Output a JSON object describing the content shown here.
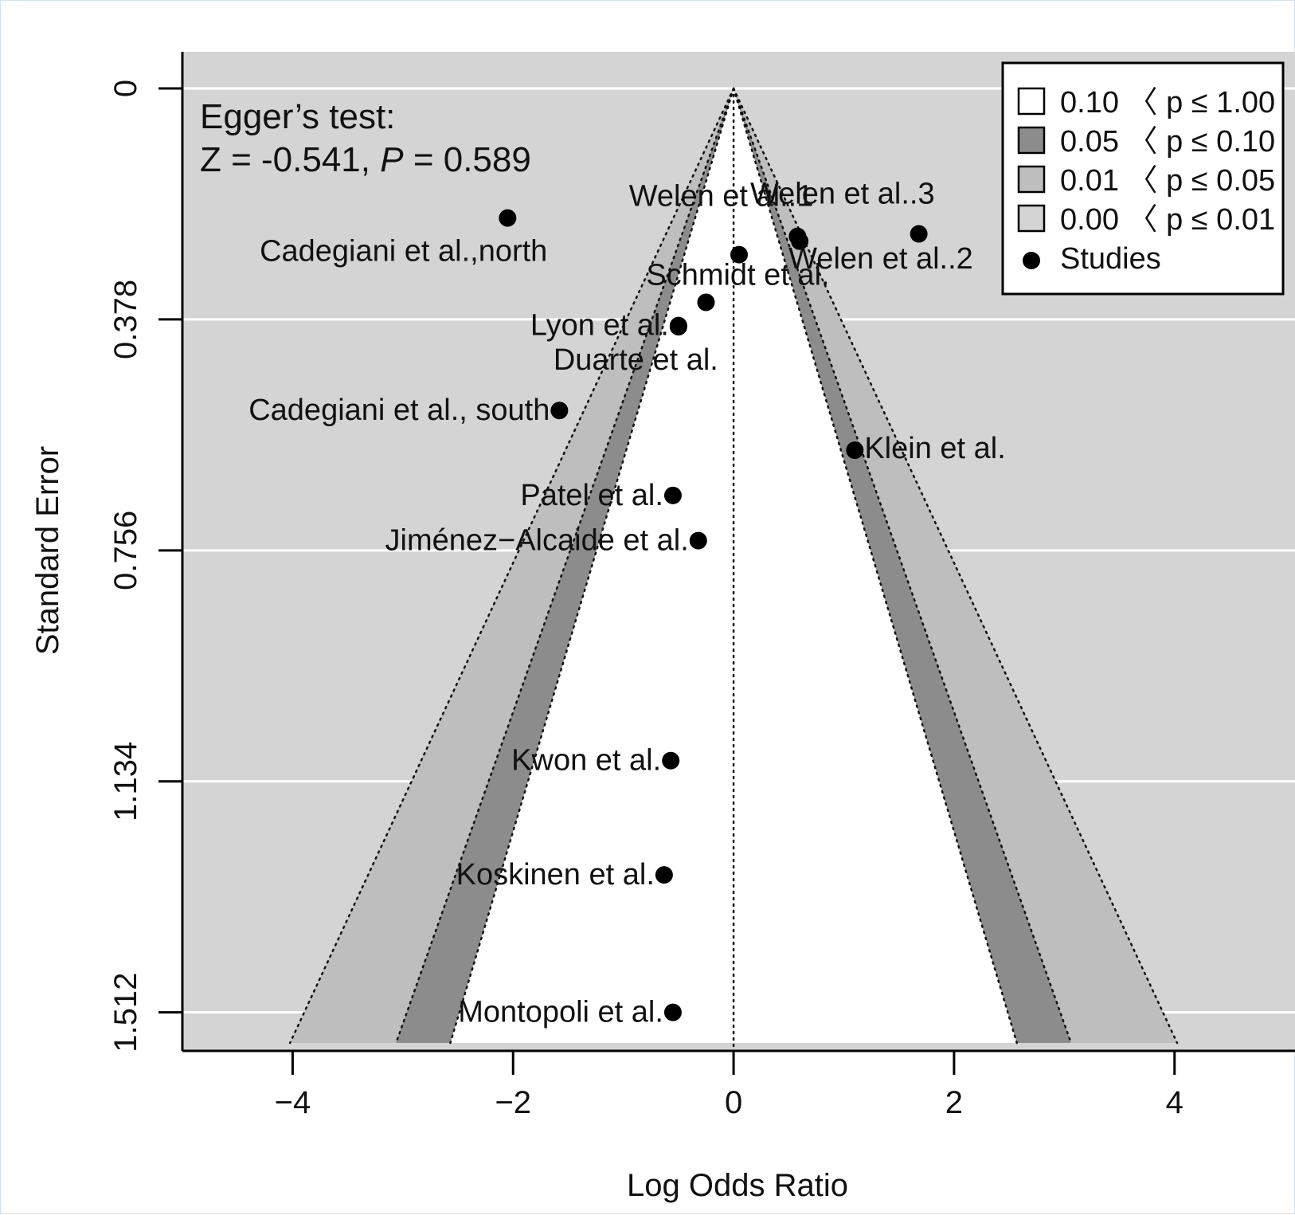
{
  "chart_data": {
    "type": "scatter",
    "subtype": "contour-enhanced funnel plot",
    "title": "",
    "xlabel": "Log Odds Ratio",
    "ylabel": "Standard Error",
    "xlim": [
      -5,
      5.1
    ],
    "ylim": [
      1.575,
      -0.06
    ],
    "y_reversed": true,
    "x_ticks": [
      -4,
      -2,
      0,
      2,
      4
    ],
    "x_tick_labels": [
      "−4",
      "−2",
      "0",
      "2",
      "4"
    ],
    "y_ticks": [
      0,
      0.378,
      0.756,
      1.134,
      1.512
    ],
    "y_tick_labels": [
      "0",
      "0.378",
      "0.756",
      "1.134",
      "1.512"
    ],
    "grid": "horizontal lines at y ticks",
    "funnel_center": 0,
    "contours": [
      {
        "label": "0.10 〈 p ≤ 1.00",
        "z": 1.645,
        "color": "#ffffff"
      },
      {
        "label": "0.05 〈 p ≤ 0.10",
        "z": 1.96,
        "color": "#8c8c8c"
      },
      {
        "label": "0.01 〈 p ≤ 0.05",
        "z": 2.576,
        "color": "#bebebe"
      },
      {
        "label": "0.00 〈 p ≤ 0.01",
        "color": "#d4d4d4"
      }
    ],
    "annotation": {
      "line1": "Egger’s test:",
      "line2_prefix": "Z = -0.541, ",
      "line2_italic": "P",
      "line2_suffix": " = 0.589"
    },
    "legend": {
      "position": "top-right",
      "entries": [
        {
          "label": "0.10 〈 p ≤ 1.00",
          "swatch": "#ffffff"
        },
        {
          "label": "0.05 〈 p ≤ 0.10",
          "swatch": "#8c8c8c"
        },
        {
          "label": "0.01 〈 p ≤ 0.05",
          "swatch": "#bebebe"
        },
        {
          "label": "0.00 〈 p ≤ 0.01",
          "swatch": "#d4d4d4"
        },
        {
          "label": "Studies",
          "marker": "point"
        }
      ]
    },
    "studies": [
      {
        "label": "Welen et al..3",
        "x": 1.68,
        "y": 0.238,
        "label_pos": "above-left"
      },
      {
        "label": "Welen et al..1",
        "x": 0.58,
        "y": 0.242,
        "label_pos": "above-left"
      },
      {
        "label": "Welen et al..2",
        "x": 0.6,
        "y": 0.25,
        "label_pos": "below-right"
      },
      {
        "label": "Cadegiani et al.,north",
        "x": -2.05,
        "y": 0.212,
        "label_pos": "below-left"
      },
      {
        "label": "",
        "x": 0.05,
        "y": 0.272
      },
      {
        "label": "Schmidt et al.",
        "x": -0.25,
        "y": 0.35,
        "label_pos": "above"
      },
      {
        "label": "Lyon et al.",
        "x": -0.5,
        "y": 0.388,
        "label_pos": "left"
      },
      {
        "label": "Duarte et al.",
        "x": -0.5,
        "y": 0.39,
        "label_pos": "below-left"
      },
      {
        "label": "Cadegiani et al., south",
        "x": -1.58,
        "y": 0.527,
        "label_pos": "left"
      },
      {
        "label": "Klein et al.",
        "x": 1.1,
        "y": 0.592,
        "label_pos": "right"
      },
      {
        "label": "Patel et al.",
        "x": -0.55,
        "y": 0.666,
        "label_pos": "left"
      },
      {
        "label": "Jiménez−Alcaide et al.",
        "x": -0.32,
        "y": 0.74,
        "label_pos": "left"
      },
      {
        "label": "Kwon et al.",
        "x": -0.57,
        "y": 1.1,
        "label_pos": "left"
      },
      {
        "label": "Koskinen et al.",
        "x": -0.63,
        "y": 1.287,
        "label_pos": "left"
      },
      {
        "label": "Montopoli et al.",
        "x": -0.55,
        "y": 1.512,
        "label_pos": "left"
      }
    ]
  }
}
